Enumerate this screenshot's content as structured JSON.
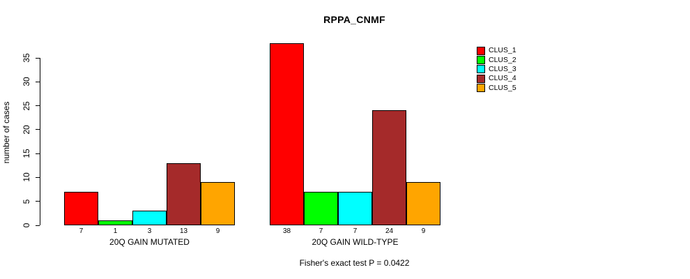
{
  "chart_data": {
    "type": "bar",
    "title": "RPPA_CNMF",
    "ylabel": "number of cases",
    "xlabel": "",
    "ylim": [
      0,
      38
    ],
    "yticks": [
      0,
      5,
      10,
      15,
      20,
      25,
      30,
      35
    ],
    "grid": false,
    "legend_position": "top-right",
    "categories": [
      "20Q GAIN MUTATED",
      "20Q GAIN WILD-TYPE"
    ],
    "series": [
      {
        "name": "CLUS_1",
        "color": "#FF0000",
        "values": [
          7,
          38
        ]
      },
      {
        "name": "CLUS_2",
        "color": "#00FF00",
        "values": [
          1,
          7
        ]
      },
      {
        "name": "CLUS_3",
        "color": "#00FFFF",
        "values": [
          3,
          7
        ]
      },
      {
        "name": "CLUS_4",
        "color": "#A52A2A",
        "values": [
          13,
          24
        ]
      },
      {
        "name": "CLUS_5",
        "color": "#FFA500",
        "values": [
          9,
          9
        ]
      }
    ],
    "footnote": "Fisher's exact test P = 0.0422"
  }
}
